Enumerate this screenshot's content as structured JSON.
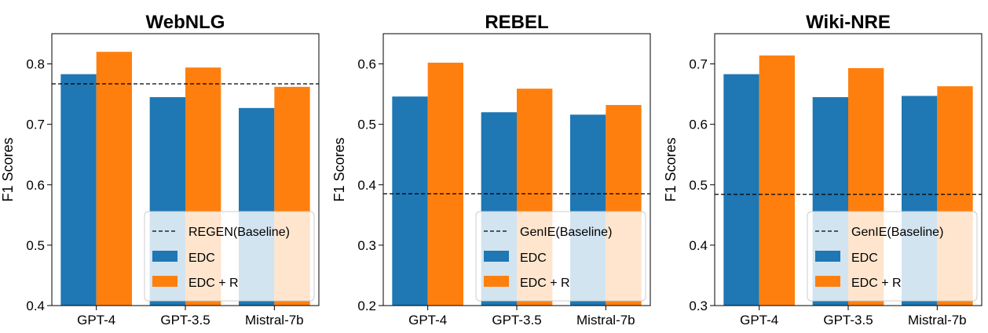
{
  "chart_data": [
    {
      "type": "bar",
      "title": "WebNLG",
      "ylabel": "F1 Scores",
      "ylim": [
        0.4,
        0.85
      ],
      "yticks": [
        0.4,
        0.5,
        0.6,
        0.7,
        0.8
      ],
      "ytick_labels": [
        "0.4",
        "0.5",
        "0.6",
        "0.7",
        "0.8"
      ],
      "categories": [
        "GPT-4",
        "GPT-3.5",
        "Mistral-7b"
      ],
      "series": [
        {
          "name": "EDC",
          "color": "#1f77b4",
          "values": [
            0.783,
            0.745,
            0.727
          ]
        },
        {
          "name": "EDC + R",
          "color": "#ff7f0e",
          "values": [
            0.82,
            0.794,
            0.762
          ]
        }
      ],
      "baseline": {
        "name": "REGEN(Baseline)",
        "value": 0.767
      },
      "legend": {
        "placement": "lower-right",
        "entries": [
          "REGEN(Baseline)",
          "EDC",
          "EDC + R"
        ]
      }
    },
    {
      "type": "bar",
      "title": "REBEL",
      "ylabel": "F1 Scores",
      "ylim": [
        0.2,
        0.65
      ],
      "yticks": [
        0.2,
        0.3,
        0.4,
        0.5,
        0.6
      ],
      "ytick_labels": [
        "0.2",
        "0.3",
        "0.4",
        "0.5",
        "0.6"
      ],
      "categories": [
        "GPT-4",
        "GPT-3.5",
        "Mistral-7b"
      ],
      "series": [
        {
          "name": "EDC",
          "color": "#1f77b4",
          "values": [
            0.546,
            0.52,
            0.516
          ]
        },
        {
          "name": "EDC + R",
          "color": "#ff7f0e",
          "values": [
            0.602,
            0.559,
            0.532
          ]
        }
      ],
      "baseline": {
        "name": "GenIE(Baseline)",
        "value": 0.385
      },
      "legend": {
        "placement": "lower-right",
        "entries": [
          "GenIE(Baseline)",
          "EDC",
          "EDC + R"
        ]
      }
    },
    {
      "type": "bar",
      "title": "Wiki-NRE",
      "ylabel": "F1 Scores",
      "ylim": [
        0.3,
        0.75
      ],
      "yticks": [
        0.3,
        0.4,
        0.5,
        0.6,
        0.7
      ],
      "ytick_labels": [
        "0.3",
        "0.4",
        "0.5",
        "0.6",
        "0.7"
      ],
      "categories": [
        "GPT-4",
        "GPT-3.5",
        "Mistral-7b"
      ],
      "series": [
        {
          "name": "EDC",
          "color": "#1f77b4",
          "values": [
            0.683,
            0.645,
            0.647
          ]
        },
        {
          "name": "EDC + R",
          "color": "#ff7f0e",
          "values": [
            0.714,
            0.693,
            0.663
          ]
        }
      ],
      "baseline": {
        "name": "GenIE(Baseline)",
        "value": 0.484
      },
      "legend": {
        "placement": "lower-right",
        "entries": [
          "GenIE(Baseline)",
          "EDC",
          "EDC + R"
        ]
      }
    }
  ]
}
